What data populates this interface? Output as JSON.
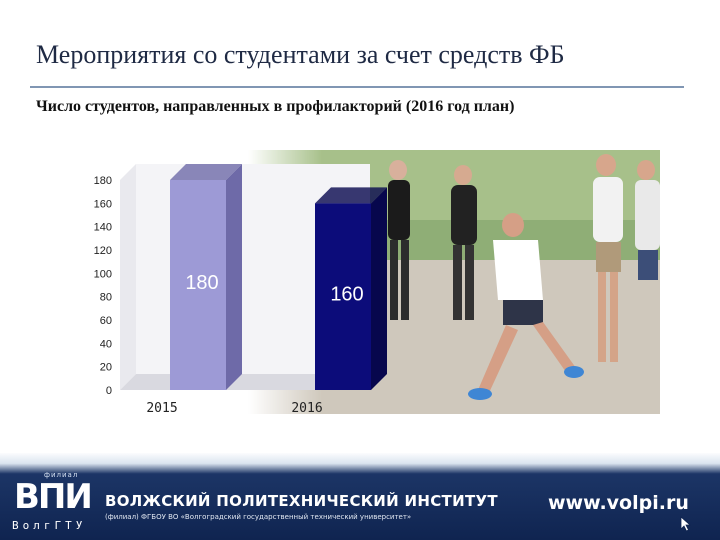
{
  "slide": {
    "title": "Мероприятия со студентами за счет средств ФБ",
    "subtitle": "Число студентов, направленных в профилакторий (2016 год план)"
  },
  "chart_data": {
    "type": "bar",
    "categories": [
      "2015",
      "2016"
    ],
    "values": [
      180,
      160
    ],
    "data_labels": [
      "180",
      "160"
    ],
    "ylim": [
      0,
      180
    ],
    "yticks": [
      0,
      20,
      40,
      60,
      80,
      100,
      120,
      140,
      160,
      180
    ],
    "style": "3d",
    "grid": false,
    "colors": {
      "bar_2015": "#9d9ad6",
      "bar_2015_side": "#6e6aa8",
      "bar_2016": "#0c0c7a",
      "bar_2016_side": "#07074d",
      "label": "#ffffff"
    },
    "title": "",
    "xlabel": "",
    "ylabel": ""
  },
  "footer": {
    "logo_top": "филиал",
    "logo_main": "ВПИ",
    "logo_bottom": "ВолгГТУ",
    "institute_name": "ВОЛЖСКИЙ ПОЛИТЕХНИЧЕСКИЙ ИНСТИТУТ",
    "institute_subtitle": "(филиал) ФГБОУ ВО «Волгоградский государственный технический университет»",
    "website": "www.volpi.ru",
    "cursor_icon": "cursor-arrow-icon"
  }
}
